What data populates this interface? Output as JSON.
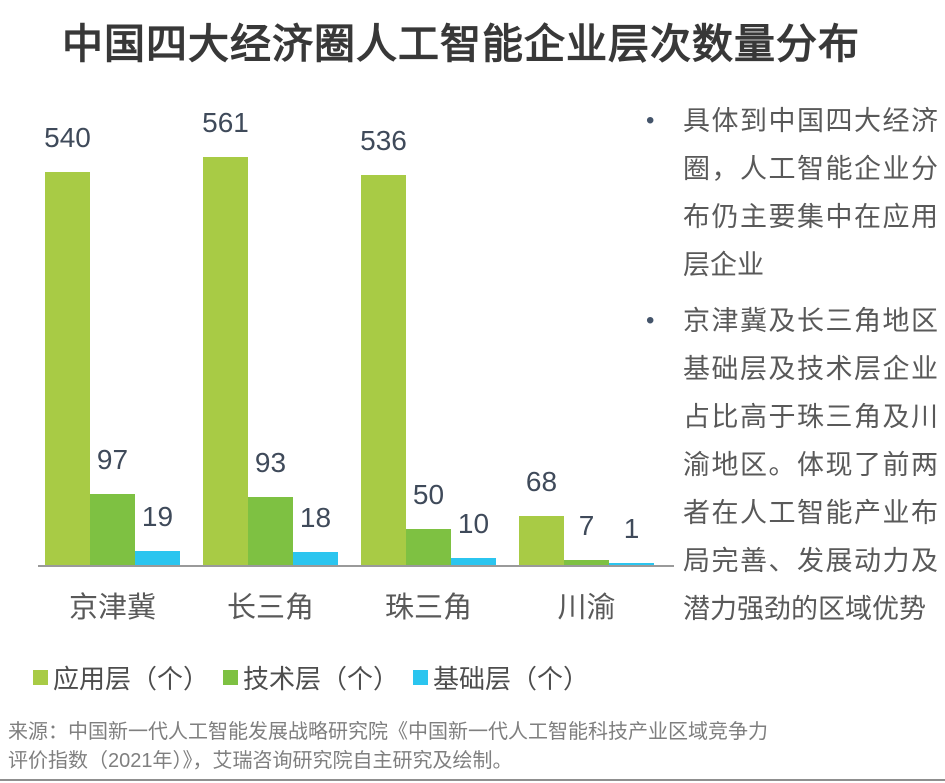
{
  "title": "中国四大经济圈人工智能企业层次数量分布",
  "chart_data": {
    "type": "bar",
    "title": "中国四大经济圈人工智能企业层次数量分布",
    "categories": [
      "京津冀",
      "长三角",
      "珠三角",
      "川渝"
    ],
    "series": [
      {
        "name": "应用层（个）",
        "color": "#a8cb45",
        "values": [
          540,
          561,
          536,
          68
        ]
      },
      {
        "name": "技术层（个）",
        "color": "#7ec142",
        "values": [
          97,
          93,
          50,
          7
        ]
      },
      {
        "name": "基础层（个）",
        "color": "#2bc5ef",
        "values": [
          19,
          18,
          10,
          1
        ]
      }
    ],
    "xlabel": "",
    "ylabel": "",
    "ylim": [
      0,
      600
    ],
    "grid": false,
    "legend_position": "bottom",
    "value_labels": true,
    "axis_color": "#9a9a9a",
    "value_label_color": "#3f4a5a",
    "category_label_color": "#595959"
  },
  "insights": [
    "具体到中国四大经济圈，人工智能企业分布仍主要集中在应用层企业",
    "京津冀及长三角地区基础层及技术层企业占比高于珠三角及川渝地区。体现了前两者在人工智能产业布局完善、发展动力及潜力强劲的区域优势"
  ],
  "bullet_glyph": "•",
  "source": "来源：中国新一代人工智能发展战略研究院《中国新一代人工智能科技产业区域竞争力评价指数（2021年）》，艾瑞咨询研究院自主研究及绘制。"
}
